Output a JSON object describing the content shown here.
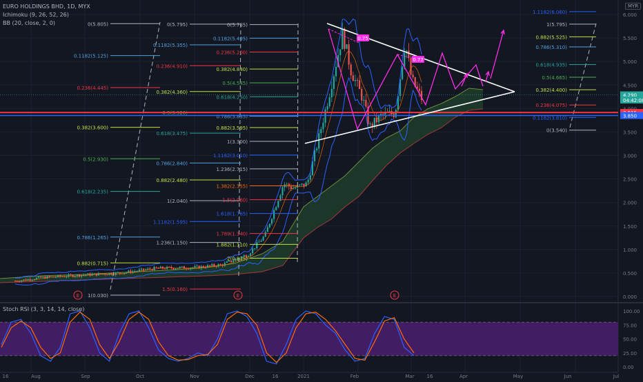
{
  "header": {
    "symbol_line": "EURO HOLDINGS BHD, 1D, MYX",
    "ichimoku_line": "Ichimoku (9, 26, 52, 26)",
    "bb_line": "BB (20, close, 2, 0)",
    "currency": "MYR"
  },
  "rsi_panel": {
    "title": "Stoch RSI (3, 3, 14, 14, close)"
  },
  "colors": {
    "background": "#131722",
    "up_candle": "#26a69a",
    "down_candle": "#ef5350",
    "projection": "#ff2ee8",
    "triangle": "#ffffff",
    "red_line": "#f23645",
    "blue_line": "#2962ff",
    "rsi_band": "#4b1f6f",
    "stoch_k": "#2962ff",
    "stoch_d": "#ff6d00",
    "cloud_green": "#1e3d2c",
    "cloud_red": "#3d1e1e"
  },
  "chart_data": [
    {
      "type": "line",
      "name": "price",
      "x_ticks": [
        "16",
        "Aug",
        "Sep",
        "Oct",
        "Nov",
        "Dec",
        "16",
        "2021",
        "Feb",
        "Mar",
        "16",
        "Apr",
        "May",
        "Jun",
        "Jul"
      ],
      "y_ticks": [
        "6.000",
        "5.500",
        "5.000",
        "4.500",
        "4.000",
        "3.500",
        "3.000",
        "2.500",
        "2.000",
        "1.500",
        "1.000",
        "0.500",
        "0.000"
      ],
      "ylim": [
        -0.2,
        6.35
      ],
      "price_path": [
        [
          "2020-07-10",
          0.33
        ],
        [
          "2020-07-25",
          0.4
        ],
        [
          "2020-08-15",
          0.45
        ],
        [
          "2020-09-10",
          0.5
        ],
        [
          "2020-10-01",
          0.6
        ],
        [
          "2020-10-25",
          0.62
        ],
        [
          "2020-11-10",
          0.68
        ],
        [
          "2020-11-25",
          0.9
        ],
        [
          "2020-12-05",
          1.3
        ],
        [
          "2020-12-10",
          1.8
        ],
        [
          "2020-12-16",
          2.4
        ],
        [
          "2020-12-22",
          2.3
        ],
        [
          "2020-12-30",
          2.4
        ],
        [
          "2021-01-05",
          3.25
        ],
        [
          "2021-01-12",
          4.3
        ],
        [
          "2021-01-20",
          5.6
        ],
        [
          "2021-01-25",
          4.8
        ],
        [
          "2021-02-01",
          4.2
        ],
        [
          "2021-02-05",
          3.6
        ],
        [
          "2021-02-12",
          3.85
        ],
        [
          "2021-02-20",
          3.9
        ],
        [
          "2021-02-26",
          5.4
        ],
        [
          "2021-03-02",
          4.6
        ],
        [
          "2021-03-08",
          4.2
        ]
      ],
      "price_labels": [
        {
          "text": "4.290",
          "value": 4.29,
          "color": "#26a69a"
        },
        {
          "text": "04:42:08",
          "value": 4.18,
          "color": "#26a69a"
        },
        {
          "text": "3.915",
          "value": 3.915,
          "color": "#f23645"
        },
        {
          "text": "3.850",
          "value": 3.85,
          "color": "#2962ff"
        }
      ],
      "fib_sets": [
        {
          "levels": [
            {
              "label": "0(5.805)",
              "value": 5.805,
              "color": "#b2b5be"
            },
            {
              "label": "0.1182(5.125)",
              "value": 5.125,
              "color": "#4fa3e0"
            },
            {
              "label": "0.236(4.445)",
              "value": 4.445,
              "color": "#f23645"
            },
            {
              "label": "0.382(3.600)",
              "value": 3.6,
              "color": "#c3e048"
            },
            {
              "label": "0.5(2.930)",
              "value": 2.93,
              "color": "#4caf50"
            },
            {
              "label": "0.618(2.235)",
              "value": 2.235,
              "color": "#26a69a"
            },
            {
              "label": "0.786(1.265)",
              "value": 1.265,
              "color": "#4fa3e0"
            },
            {
              "label": "0.882(0.715)",
              "value": 0.715,
              "color": "#c3e048"
            },
            {
              "label": "1(0.030)",
              "value": 0.03,
              "color": "#b2b5be"
            }
          ]
        },
        {
          "levels": [
            {
              "label": "0(5.795)",
              "value": 5.795,
              "color": "#b2b5be"
            },
            {
              "label": "0.1182(5.355)",
              "value": 5.355,
              "color": "#4fa3e0"
            },
            {
              "label": "0.236(4.910)",
              "value": 4.91,
              "color": "#f23645"
            },
            {
              "label": "0.382(4.360)",
              "value": 4.36,
              "color": "#c3e048"
            },
            {
              "label": "0.5(3.920)",
              "value": 3.92,
              "color": "#4caf50"
            },
            {
              "label": "0.618(3.475)",
              "value": 3.475,
              "color": "#26a69a"
            },
            {
              "label": "0.786(2.840)",
              "value": 2.84,
              "color": "#4fa3e0"
            },
            {
              "label": "0.882(2.480)",
              "value": 2.48,
              "color": "#c3e048"
            },
            {
              "label": "1(2.040)",
              "value": 2.04,
              "color": "#b2b5be"
            },
            {
              "label": "1.1182(1.595)",
              "value": 1.595,
              "color": "#2962ff"
            },
            {
              "label": "1.236(1.150)",
              "value": 1.15,
              "color": "#b2b5be"
            },
            {
              "label": "1.5(0.160)",
              "value": 0.16,
              "color": "#f23645"
            }
          ]
        },
        {
          "levels": [
            {
              "label": "0(5.785)",
              "value": 5.785,
              "color": "#b2b5be"
            },
            {
              "label": "0.1182(5.495)",
              "value": 5.495,
              "color": "#4fa3e0"
            },
            {
              "label": "0.236(5.200)",
              "value": 5.2,
              "color": "#f23645"
            },
            {
              "label": "0.382(4.840)",
              "value": 4.84,
              "color": "#c3e048"
            },
            {
              "label": "0.5(4.545)",
              "value": 4.545,
              "color": "#4caf50"
            },
            {
              "label": "0.618(4.250)",
              "value": 4.25,
              "color": "#26a69a"
            },
            {
              "label": "0.786(3.835)",
              "value": 3.835,
              "color": "#4fa3e0"
            },
            {
              "label": "0.882(3.595)",
              "value": 3.595,
              "color": "#c3e048"
            },
            {
              "label": "1(3.300)",
              "value": 3.3,
              "color": "#b2b5be"
            },
            {
              "label": "1.1182(3.010)",
              "value": 3.01,
              "color": "#2962ff"
            },
            {
              "label": "1.236(2.715)",
              "value": 2.715,
              "color": "#b2b5be"
            },
            {
              "label": "1.382(2.355)",
              "value": 2.355,
              "color": "#ff6d00"
            },
            {
              "label": "1.5(2.060)",
              "value": 2.06,
              "color": "#f23645"
            },
            {
              "label": "1.618(1.765)",
              "value": 1.765,
              "color": "#2962ff"
            },
            {
              "label": "1.789(1.340)",
              "value": 1.34,
              "color": "#f23645"
            },
            {
              "label": "1.882(1.110)",
              "value": 1.11,
              "color": "#c3e048"
            },
            {
              "label": "2(0.815)",
              "value": 0.815,
              "color": "#c3e048"
            }
          ]
        },
        {
          "levels": [
            {
              "label": "1.1182(6.060)",
              "value": 6.06,
              "color": "#2962ff"
            },
            {
              "label": "1(5.795)",
              "value": 5.795,
              "color": "#b2b5be"
            },
            {
              "label": "0.882(5.525)",
              "value": 5.525,
              "color": "#c3e048"
            },
            {
              "label": "0.786(5.310)",
              "value": 5.31,
              "color": "#4fa3e0"
            },
            {
              "label": "0.618(4.935)",
              "value": 4.935,
              "color": "#26a69a"
            },
            {
              "label": "0.5(4.665)",
              "value": 4.665,
              "color": "#4caf50"
            },
            {
              "label": "0.382(4.400)",
              "value": 4.4,
              "color": "#c3e048"
            },
            {
              "label": "0.236(4.075)",
              "value": 4.075,
              "color": "#f23645"
            },
            {
              "label": "0.1182(3.810)",
              "value": 3.81,
              "color": "#2962ff"
            },
            {
              "label": "0(3.540)",
              "value": 3.54,
              "color": "#b2b5be"
            }
          ]
        }
      ],
      "annotations": [
        {
          "text": "0.75",
          "color": "#ff2ee8"
        },
        {
          "text": "0.77",
          "color": "#ff2ee8"
        }
      ],
      "earnings_markers": [
        "E",
        "E",
        "E"
      ]
    },
    {
      "type": "line",
      "name": "Stoch RSI",
      "y_ticks": [
        "100.00",
        "75.00",
        "50.00",
        "25.00",
        "0.00"
      ],
      "ylim": [
        0,
        100
      ],
      "band": [
        20,
        80
      ],
      "series": [
        {
          "name": "K",
          "values": [
            40,
            80,
            85,
            60,
            20,
            10,
            35,
            95,
            100,
            70,
            25,
            10,
            60,
            95,
            100,
            70,
            30,
            15,
            10,
            15,
            25,
            20,
            50,
            95,
            100,
            90,
            60,
            10,
            5,
            40,
            85,
            100,
            95,
            75,
            60,
            30,
            10,
            15,
            60,
            90,
            85,
            35,
            20
          ]
        },
        {
          "name": "D",
          "values": [
            35,
            70,
            82,
            70,
            35,
            15,
            25,
            80,
            98,
            85,
            40,
            15,
            45,
            85,
            98,
            85,
            45,
            20,
            12,
            13,
            20,
            22,
            40,
            85,
            98,
            95,
            75,
            25,
            8,
            25,
            70,
            95,
            98,
            85,
            65,
            40,
            15,
            12,
            45,
            82,
            88,
            50,
            25
          ]
        }
      ]
    }
  ]
}
